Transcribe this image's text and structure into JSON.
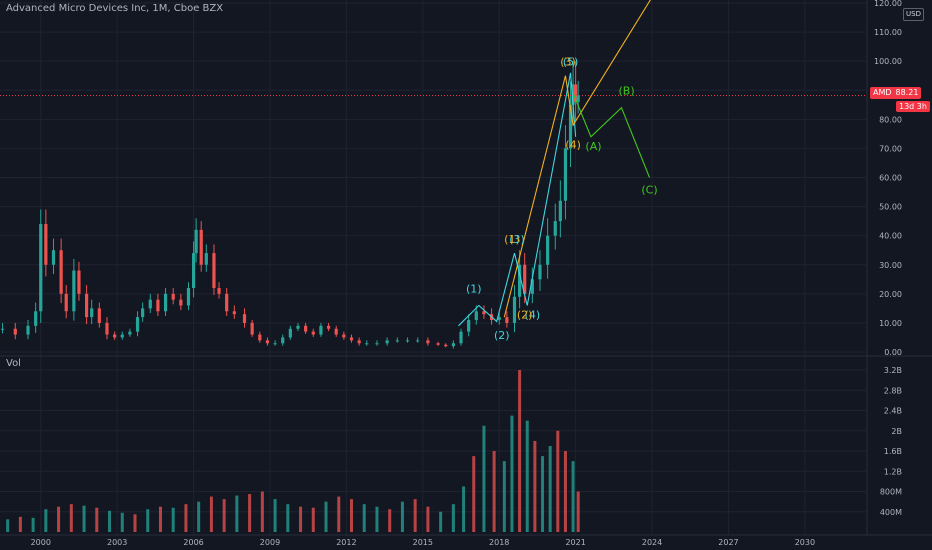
{
  "header": {
    "title": "Advanced Micro Devices Inc, 1M, Cboe BZX"
  },
  "currency": "USD",
  "price_badge": {
    "symbol": "AMD",
    "price": "88.21",
    "countdown": "13d 3h"
  },
  "volume_label": "Vol",
  "colors": {
    "up": "#26a69a",
    "down": "#ef5350",
    "grid": "#1f2330",
    "background": "#131722",
    "cyan_wave": "#3ed6e0",
    "orange_wave": "#f0b020",
    "green_wave": "#43c61f"
  },
  "chart_data": [
    {
      "type": "candlestick",
      "title": "Advanced Micro Devices Inc, 1M, Cboe BZX",
      "xlabel": "",
      "ylabel": "",
      "x_ticks": [
        "2000",
        "2003",
        "2006",
        "2009",
        "2012",
        "2015",
        "2018",
        "2021",
        "2024",
        "2027",
        "2030"
      ],
      "y_ticks": [
        "0.00",
        "10.00",
        "20.00",
        "30.00",
        "40.00",
        "50.00",
        "60.00",
        "70.00",
        "80.00",
        "90.00",
        "100.00",
        "110.00",
        "120.00"
      ],
      "ylim": [
        0,
        120
      ],
      "xlim": [
        1998.4,
        2032.4
      ],
      "grid": true,
      "last_price": 88.21,
      "series": [
        {
          "name": "AMD",
          "x": [
            1998.5,
            1999.0,
            1999.5,
            1999.8,
            2000.0,
            2000.2,
            2000.5,
            2000.8,
            2001.0,
            2001.3,
            2001.5,
            2001.8,
            2002.0,
            2002.3,
            2002.6,
            2002.9,
            2003.2,
            2003.5,
            2003.8,
            2004.0,
            2004.3,
            2004.6,
            2004.9,
            2005.2,
            2005.5,
            2005.8,
            2006.0,
            2006.1,
            2006.3,
            2006.5,
            2006.8,
            2007.0,
            2007.3,
            2007.6,
            2008.0,
            2008.3,
            2008.6,
            2008.9,
            2009.2,
            2009.5,
            2009.8,
            2010.1,
            2010.4,
            2010.7,
            2011.0,
            2011.3,
            2011.6,
            2011.9,
            2012.2,
            2012.5,
            2012.8,
            2013.2,
            2013.6,
            2014.0,
            2014.4,
            2014.8,
            2015.2,
            2015.6,
            2015.9,
            2016.2,
            2016.5,
            2016.8,
            2017.1,
            2017.4,
            2017.7,
            2018.0,
            2018.3,
            2018.6,
            2018.8,
            2019.0,
            2019.3,
            2019.6,
            2019.9,
            2020.2,
            2020.4,
            2020.6,
            2020.8,
            2020.9,
            2021.0,
            2021.1
          ],
          "close": [
            8,
            6,
            9,
            14,
            44,
            30,
            35,
            20,
            14,
            28,
            20,
            12,
            15,
            10,
            6,
            5,
            6,
            7,
            12,
            15,
            18,
            14,
            20,
            18,
            16,
            22,
            34,
            42,
            30,
            34,
            22,
            20,
            14,
            13,
            10,
            6,
            4,
            3,
            3,
            5,
            8,
            9,
            7,
            6,
            9,
            8,
            6,
            5,
            4,
            3,
            3,
            3,
            4,
            4,
            4,
            4,
            3,
            2.5,
            2,
            3,
            7,
            11,
            14,
            13,
            11,
            12,
            10,
            19,
            30,
            20,
            25,
            30,
            40,
            45,
            52,
            70,
            85,
            92,
            86,
            88.21
          ],
          "spread": [
            2,
            2,
            2,
            3,
            5,
            5,
            4,
            4,
            3,
            4,
            3,
            3,
            3,
            2,
            2,
            1,
            1,
            1,
            2,
            2,
            2,
            2,
            2,
            2,
            2,
            2,
            4,
            4,
            3,
            3,
            3,
            2,
            2,
            2,
            2,
            1,
            1,
            1,
            1,
            1,
            1,
            1,
            1,
            1,
            1,
            1,
            1,
            1,
            1,
            1,
            1,
            1,
            1,
            1,
            1,
            1,
            1,
            0.5,
            0.5,
            1,
            1,
            2,
            2,
            2,
            2,
            2,
            2,
            4,
            5,
            4,
            4,
            5,
            6,
            6,
            7,
            8,
            8,
            8,
            8,
            5
          ]
        }
      ]
    },
    {
      "type": "bar",
      "title": "Vol",
      "y_ticks": [
        "400M",
        "800M",
        "1.2B",
        "1.6B",
        "2B",
        "2.4B",
        "2.8B",
        "3.2B"
      ],
      "ylim": [
        0,
        3300000000
      ],
      "x": [
        1998.7,
        1999.2,
        1999.7,
        2000.2,
        2000.7,
        2001.2,
        2001.7,
        2002.2,
        2002.7,
        2003.2,
        2003.7,
        2004.2,
        2004.7,
        2005.2,
        2005.7,
        2006.2,
        2006.7,
        2007.2,
        2007.7,
        2008.2,
        2008.7,
        2009.2,
        2009.7,
        2010.2,
        2010.7,
        2011.2,
        2011.7,
        2012.2,
        2012.7,
        2013.2,
        2013.7,
        2014.2,
        2014.7,
        2015.2,
        2015.7,
        2016.2,
        2016.6,
        2017.0,
        2017.4,
        2017.8,
        2018.2,
        2018.5,
        2018.8,
        2019.1,
        2019.4,
        2019.7,
        2020.0,
        2020.3,
        2020.6,
        2020.9,
        2021.1
      ],
      "values": [
        250000000,
        300000000,
        280000000,
        450000000,
        500000000,
        550000000,
        520000000,
        480000000,
        420000000,
        380000000,
        350000000,
        450000000,
        500000000,
        480000000,
        550000000,
        600000000,
        700000000,
        650000000,
        720000000,
        750000000,
        800000000,
        650000000,
        550000000,
        500000000,
        480000000,
        600000000,
        700000000,
        650000000,
        550000000,
        500000000,
        450000000,
        600000000,
        650000000,
        500000000,
        400000000,
        550000000,
        900000000,
        1500000000,
        2100000000,
        1600000000,
        1400000000,
        2300000000,
        3200000000,
        2200000000,
        1800000000,
        1500000000,
        1700000000,
        2000000000,
        1600000000,
        1400000000,
        800000000
      ],
      "colors_up": [
        true,
        false,
        true,
        true,
        false,
        false,
        true,
        false,
        true,
        true,
        false,
        true,
        false,
        true,
        false,
        true,
        false,
        false,
        true,
        false,
        false,
        true,
        true,
        false,
        false,
        true,
        false,
        false,
        true,
        true,
        false,
        true,
        false,
        false,
        true,
        true,
        true,
        false,
        true,
        false,
        true,
        true,
        false,
        true,
        false,
        true,
        true,
        false,
        false,
        true,
        false
      ]
    }
  ],
  "wave_labels": {
    "cyan": [
      {
        "text": "(1)",
        "x": 2017.0,
        "y": 20.5
      },
      {
        "text": "(2)",
        "x": 2018.1,
        "y": 4.5
      },
      {
        "text": "(3)",
        "x": 2018.7,
        "y": 37.5
      },
      {
        "text": "(4)",
        "x": 2019.3,
        "y": 11.5
      },
      {
        "text": "(5)",
        "x": 2020.8,
        "y": 98.5
      }
    ],
    "orange": [
      {
        "text": "(1)",
        "x": 2018.5,
        "y": 37.5
      },
      {
        "text": "(2)",
        "x": 2019.0,
        "y": 11.5
      },
      {
        "text": "(3)",
        "x": 2020.7,
        "y": 98.5
      },
      {
        "text": "(4)",
        "x": 2020.9,
        "y": 70
      }
    ],
    "green": [
      {
        "text": "(A)",
        "x": 2021.7,
        "y": 69.5
      },
      {
        "text": "(B)",
        "x": 2023.0,
        "y": 88.5
      },
      {
        "text": "(C)",
        "x": 2023.9,
        "y": 54.5
      }
    ]
  },
  "wave_paths": {
    "cyan": [
      [
        2016.4,
        9
      ],
      [
        2017.2,
        16
      ],
      [
        2017.9,
        10.5
      ],
      [
        2018.6,
        34
      ],
      [
        2019.1,
        16
      ],
      [
        2020.8,
        96
      ],
      [
        2021.0,
        74
      ]
    ],
    "orange": [
      [
        2018.2,
        12
      ],
      [
        2020.6,
        95
      ],
      [
        2020.9,
        78
      ],
      [
        2024.0,
        122
      ]
    ],
    "green": [
      [
        2020.9,
        89
      ],
      [
        2021.6,
        74
      ],
      [
        2022.8,
        84
      ],
      [
        2023.9,
        60
      ]
    ]
  }
}
